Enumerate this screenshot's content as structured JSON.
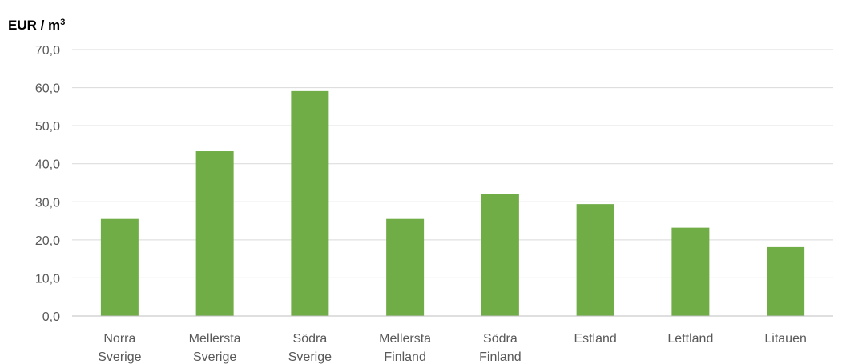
{
  "chart_data": {
    "type": "bar",
    "unit_label": "EUR / m",
    "unit_superscript": "3",
    "categories": [
      [
        "Norra",
        "Sverige"
      ],
      [
        "Mellersta",
        "Sverige"
      ],
      [
        "Södra",
        "Sverige"
      ],
      [
        "Mellersta",
        "Finland"
      ],
      [
        "Södra",
        "Finland"
      ],
      [
        "Estland"
      ],
      [
        "Lettland"
      ],
      [
        "Litauen"
      ]
    ],
    "values": [
      25.5,
      43.3,
      59.1,
      25.5,
      32.0,
      29.4,
      23.2,
      18.1
    ],
    "ylim": [
      0,
      70
    ],
    "yticks": [
      0,
      10,
      20,
      30,
      40,
      50,
      60,
      70
    ],
    "ytick_labels": [
      "0,0",
      "10,0",
      "20,0",
      "30,0",
      "40,0",
      "50,0",
      "60,0",
      "70,0"
    ],
    "grid": true,
    "bar_color": "#70ad47",
    "grid_color": "#d9d9d9",
    "axis_color": "#bfbfbf"
  }
}
